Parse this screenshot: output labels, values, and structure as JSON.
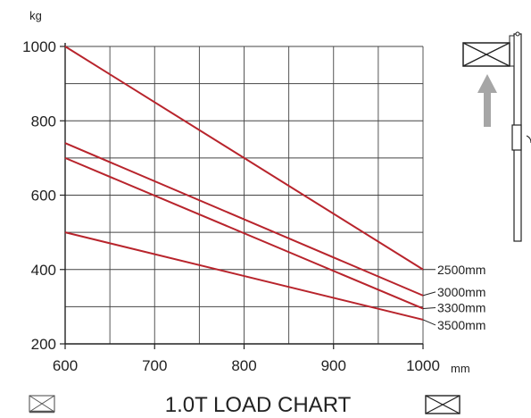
{
  "chart_data": {
    "type": "line",
    "title": "1.0T LOAD CHART",
    "xlabel": "",
    "ylabel": "",
    "x_unit": "mm",
    "y_unit": "kg",
    "xlim": [
      600,
      1000
    ],
    "ylim": [
      200,
      1000
    ],
    "x_ticks": [
      600,
      700,
      800,
      900,
      1000
    ],
    "y_ticks": [
      200,
      400,
      600,
      800,
      1000
    ],
    "grid": true,
    "series_color": "#b8242c",
    "series": [
      {
        "name": "2500mm",
        "x": [
          600,
          1000
        ],
        "y": [
          1000,
          400
        ]
      },
      {
        "name": "3000mm",
        "x": [
          600,
          1000
        ],
        "y": [
          740,
          330
        ]
      },
      {
        "name": "3300mm",
        "x": [
          600,
          1000
        ],
        "y": [
          700,
          295
        ]
      },
      {
        "name": "3500mm",
        "x": [
          600,
          1000
        ],
        "y": [
          500,
          265
        ]
      }
    ]
  },
  "icons": {
    "top_right": "mast-with-load-icon",
    "bottom_left": "load-box-small-icon",
    "bottom_right": "load-box-icon"
  }
}
